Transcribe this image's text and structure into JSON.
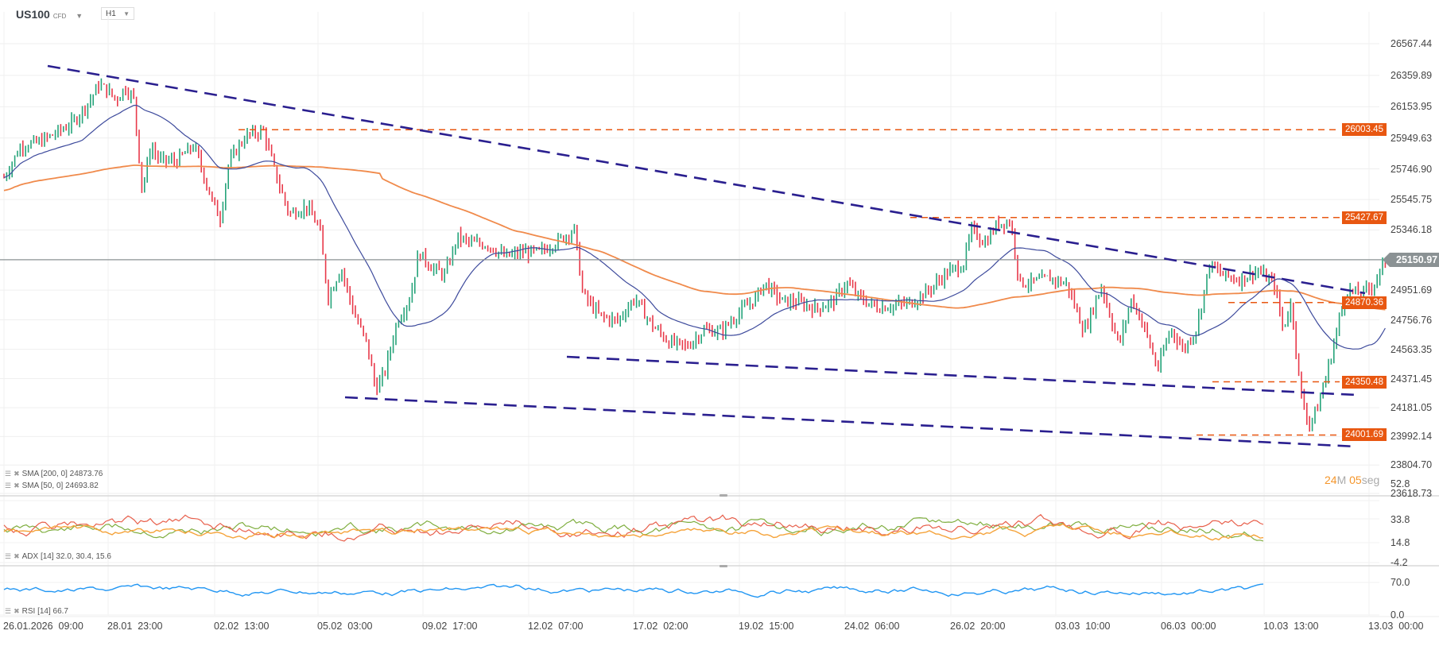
{
  "header": {
    "symbol": "US100",
    "symbol_type": "CFD",
    "timeframe": "H1"
  },
  "price_axis": {
    "ticks": [
      "26567.44",
      "26359.89",
      "26153.95",
      "25949.63",
      "25746.90",
      "25545.75",
      "25346.18",
      "24951.69",
      "24756.76",
      "24563.35",
      "24371.45",
      "24181.05",
      "23992.14",
      "23804.70",
      "23618.73"
    ],
    "current_price": "25150.97"
  },
  "price_tags": [
    "26003.45",
    "25427.67",
    "24870.36",
    "24350.48",
    "24001.69"
  ],
  "countdown": {
    "minutes": "24",
    "min_unit": "M",
    "seconds": "05",
    "sec_unit": "seg"
  },
  "legends": {
    "sma200": "SMA [200, 0] 24873.76",
    "sma50": "SMA [50, 0] 24693.82",
    "adx": "ADX [14] 32.0, 30.4, 15.6",
    "rsi": "RSI [14] 66.7"
  },
  "adx_axis": [
    "52.8",
    "33.8",
    "14.8",
    "-4.2"
  ],
  "rsi_axis": [
    "70.0",
    "0.0"
  ],
  "time_axis": [
    "26.01.2026  09:00",
    "28.01  23:00",
    "02.02  13:00",
    "05.02  03:00",
    "09.02  17:00",
    "12.02  07:00",
    "17.02  02:00",
    "19.02  15:00",
    "24.02  06:00",
    "26.02  20:00",
    "03.03  10:00",
    "06.03  00:00",
    "10.03  13:00",
    "13.03  00:00"
  ],
  "colors": {
    "up": "#26a47a",
    "down": "#e8394a",
    "sma50": "#3d4a9c",
    "sma200": "#f08a4b",
    "trendline": "#2a1f8f",
    "level": "#e85711",
    "adx_plus": "#7fae3f",
    "adx_minus": "#e8604c",
    "adx": "#f5a33a",
    "rsi": "#2196f3"
  },
  "chart_data": {
    "type": "candlestick",
    "title": "US100 CFD H1",
    "xlabel": "",
    "ylabel": "",
    "ylim": [
      23618.73,
      26567.44
    ],
    "x_ticks": [
      "26.01.2026 09:00",
      "28.01 23:00",
      "02.02 13:00",
      "05.02 03:00",
      "09.02 17:00",
      "12.02 07:00",
      "17.02 02:00",
      "19.02 15:00",
      "24.02 06:00",
      "26.02 20:00",
      "03.03 10:00",
      "06.03 00:00",
      "10.03 13:00",
      "13.03 00:00"
    ],
    "close_path": [
      [
        0,
        25690
      ],
      [
        20,
        25900
      ],
      [
        40,
        25920
      ],
      [
        60,
        25980
      ],
      [
        80,
        26050
      ],
      [
        100,
        26200
      ],
      [
        110,
        26300
      ],
      [
        120,
        26260
      ],
      [
        130,
        26200
      ],
      [
        140,
        26280
      ],
      [
        150,
        26210
      ],
      [
        160,
        25600
      ],
      [
        170,
        25900
      ],
      [
        180,
        25800
      ],
      [
        200,
        25800
      ],
      [
        220,
        25900
      ],
      [
        240,
        25550
      ],
      [
        250,
        25420
      ],
      [
        260,
        25780
      ],
      [
        270,
        25880
      ],
      [
        280,
        25960
      ],
      [
        300,
        26000
      ],
      [
        315,
        25700
      ],
      [
        330,
        25450
      ],
      [
        350,
        25500
      ],
      [
        365,
        25360
      ],
      [
        375,
        24900
      ],
      [
        390,
        25100
      ],
      [
        405,
        24800
      ],
      [
        420,
        24600
      ],
      [
        430,
        24300
      ],
      [
        440,
        24400
      ],
      [
        455,
        24750
      ],
      [
        470,
        24900
      ],
      [
        480,
        25200
      ],
      [
        495,
        25100
      ],
      [
        510,
        25050
      ],
      [
        525,
        25300
      ],
      [
        540,
        25260
      ],
      [
        560,
        25250
      ],
      [
        580,
        25170
      ],
      [
        600,
        25200
      ],
      [
        620,
        25200
      ],
      [
        640,
        25270
      ],
      [
        660,
        25350
      ],
      [
        670,
        24920
      ],
      [
        690,
        24780
      ],
      [
        710,
        24750
      ],
      [
        730,
        24900
      ],
      [
        750,
        24720
      ],
      [
        770,
        24610
      ],
      [
        790,
        24580
      ],
      [
        810,
        24690
      ],
      [
        830,
        24680
      ],
      [
        850,
        24800
      ],
      [
        870,
        24900
      ],
      [
        880,
        25000
      ],
      [
        900,
        24880
      ],
      [
        920,
        24870
      ],
      [
        940,
        24830
      ],
      [
        960,
        24880
      ],
      [
        975,
        25000
      ],
      [
        990,
        24900
      ],
      [
        1010,
        24840
      ],
      [
        1030,
        24850
      ],
      [
        1050,
        24870
      ],
      [
        1070,
        24950
      ],
      [
        1090,
        25060
      ],
      [
        1110,
        25120
      ],
      [
        1120,
        25350
      ],
      [
        1135,
        25260
      ],
      [
        1150,
        25390
      ],
      [
        1165,
        25400
      ],
      [
        1175,
        25000
      ],
      [
        1190,
        25000
      ],
      [
        1210,
        25030
      ],
      [
        1230,
        24990
      ],
      [
        1250,
        24680
      ],
      [
        1270,
        24980
      ],
      [
        1290,
        24590
      ],
      [
        1305,
        24900
      ],
      [
        1320,
        24700
      ],
      [
        1335,
        24430
      ],
      [
        1350,
        24700
      ],
      [
        1365,
        24560
      ],
      [
        1380,
        24700
      ],
      [
        1395,
        25120
      ],
      [
        1410,
        25050
      ],
      [
        1430,
        25020
      ],
      [
        1450,
        25080
      ],
      [
        1470,
        24990
      ],
      [
        1480,
        24700
      ],
      [
        1490,
        24870
      ],
      [
        1500,
        24280
      ],
      [
        1510,
        24070
      ],
      [
        1520,
        24180
      ],
      [
        1535,
        24500
      ],
      [
        1545,
        24760
      ],
      [
        1555,
        24950
      ],
      [
        1570,
        24920
      ],
      [
        1585,
        24990
      ],
      [
        1600,
        25150
      ]
    ],
    "series": [
      {
        "name": "SMA [200, 0]",
        "last": 24873.76
      },
      {
        "name": "SMA [50, 0]",
        "last": 24693.82
      }
    ],
    "horizontal_levels": [
      26003.45,
      25427.67,
      24870.36,
      24350.48,
      24001.69
    ],
    "current_price": 25150.97,
    "trendlines": [
      {
        "from": [
          "26.01 ~15:00",
          26370
        ],
        "to": [
          "13.03",
          24870
        ]
      },
      {
        "from": [
          "05.02 03:00",
          24210
        ],
        "to": [
          "13.03",
          23880
        ]
      },
      {
        "from": [
          "12.02 ~12:00",
          24490
        ],
        "to": [
          "13.03",
          24220
        ]
      }
    ],
    "indicators": {
      "ADX": {
        "period": 14,
        "values": [
          32.0,
          30.4,
          15.6
        ],
        "ylim": [
          -4.2,
          52.8
        ]
      },
      "RSI": {
        "period": 14,
        "value": 66.7,
        "ylim": [
          0.0,
          70.0
        ]
      }
    }
  }
}
